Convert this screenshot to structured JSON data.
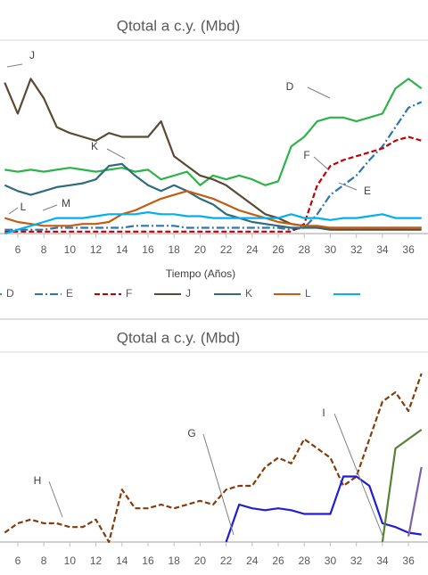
{
  "chart_data": [
    {
      "type": "line",
      "title": "Qtotal a c.y. (Mbd)",
      "x_label": "Tiempo (Años)",
      "x": [
        5,
        6,
        7,
        8,
        9,
        10,
        11,
        12,
        13,
        14,
        15,
        16,
        17,
        18,
        19,
        20,
        21,
        22,
        23,
        24,
        25,
        26,
        27,
        28,
        29,
        30,
        31,
        32,
        33,
        34,
        35,
        36,
        37
      ],
      "xlim": [
        4.5,
        37.5
      ],
      "xticks": [
        6,
        8,
        10,
        12,
        14,
        16,
        18,
        20,
        22,
        24,
        26,
        28,
        30,
        32,
        34,
        36
      ],
      "ylim": [
        0,
        100
      ],
      "series": [
        {
          "name": "D",
          "color": "#2db34a",
          "style": "solid",
          "values": [
            33,
            32,
            33,
            32,
            33,
            34,
            33,
            32,
            33,
            34,
            32,
            33,
            28,
            30,
            32,
            25,
            30,
            28,
            30,
            28,
            25,
            27,
            45,
            50,
            58,
            60,
            60,
            58,
            60,
            62,
            75,
            80,
            75
          ]
        },
        {
          "name": "E",
          "color": "#2e75b6",
          "style": "dashdot",
          "values": [
            2,
            2,
            2,
            2,
            3,
            3,
            3,
            3,
            3,
            3,
            4,
            4,
            4,
            4,
            3,
            3,
            3,
            3,
            3,
            3,
            3,
            3,
            2,
            3,
            10,
            20,
            25,
            30,
            38,
            45,
            55,
            65,
            68
          ]
        },
        {
          "name": "F",
          "color": "#c00000",
          "style": "dashed",
          "values": [
            1,
            1,
            1,
            1,
            1,
            1,
            1,
            1,
            1,
            1,
            1,
            1,
            1,
            1,
            1,
            1,
            1,
            1,
            1,
            1,
            1,
            1,
            1,
            5,
            25,
            35,
            38,
            40,
            42,
            44,
            48,
            50,
            48
          ]
        },
        {
          "name": "J",
          "color": "#594a33",
          "style": "solid",
          "values": [
            78,
            62,
            80,
            70,
            55,
            52,
            50,
            48,
            52,
            50,
            50,
            50,
            58,
            40,
            35,
            30,
            28,
            25,
            20,
            15,
            10,
            8,
            5,
            4,
            3,
            2,
            2,
            2,
            2,
            2,
            2,
            2,
            2
          ]
        },
        {
          "name": "K",
          "color": "#2e6b7d",
          "style": "solid",
          "values": [
            25,
            22,
            20,
            22,
            24,
            25,
            26,
            28,
            35,
            36,
            30,
            25,
            22,
            25,
            22,
            18,
            15,
            10,
            8,
            6,
            5,
            4,
            3,
            3,
            3,
            3,
            3,
            3,
            3,
            3,
            3,
            3,
            3
          ]
        },
        {
          "name": "L",
          "color": "#c55a11",
          "style": "solid",
          "values": [
            8,
            6,
            5,
            4,
            4,
            4,
            5,
            5,
            6,
            10,
            12,
            15,
            18,
            20,
            22,
            20,
            18,
            15,
            12,
            10,
            8,
            6,
            5,
            4,
            4,
            3,
            3,
            3,
            3,
            3,
            3,
            3,
            3
          ]
        },
        {
          "color": "#00b0f0",
          "style": "solid",
          "values": [
            0,
            2,
            4,
            6,
            8,
            8,
            8,
            9,
            10,
            10,
            10,
            11,
            10,
            10,
            9,
            9,
            8,
            8,
            8,
            8,
            8,
            8,
            10,
            8,
            8,
            7,
            8,
            8,
            9,
            10,
            8,
            8,
            8
          ]
        }
      ],
      "annotations": [
        "J",
        "D",
        "K",
        "F",
        "E",
        "L",
        "M"
      ]
    },
    {
      "type": "line",
      "title": "Qtotal a c.y. (Mbd)",
      "x": [
        5,
        6,
        7,
        8,
        9,
        10,
        11,
        12,
        13,
        14,
        15,
        16,
        17,
        18,
        19,
        20,
        21,
        22,
        23,
        24,
        25,
        26,
        27,
        28,
        29,
        30,
        31,
        32,
        33,
        34,
        35,
        36,
        37
      ],
      "xlim": [
        4.5,
        37.5
      ],
      "xticks": [
        6,
        8,
        10,
        12,
        14,
        16,
        18,
        20,
        22,
        24,
        26,
        28,
        30,
        32,
        34,
        36
      ],
      "ylim": [
        0,
        100
      ],
      "series": [
        {
          "color": "#843c0c",
          "style": "dashed",
          "values": [
            5,
            10,
            12,
            10,
            10,
            8,
            8,
            12,
            0,
            28,
            18,
            18,
            20,
            18,
            20,
            22,
            20,
            28,
            30,
            30,
            40,
            45,
            42,
            55,
            50,
            45,
            30,
            35,
            55,
            75,
            80,
            70,
            90
          ]
        },
        {
          "color": "#1f1fd1",
          "style": "solid",
          "values": [
            null,
            null,
            null,
            null,
            null,
            null,
            null,
            null,
            null,
            null,
            null,
            null,
            null,
            null,
            null,
            null,
            null,
            0,
            20,
            18,
            17,
            18,
            17,
            15,
            15,
            15,
            35,
            35,
            30,
            10,
            8,
            5,
            4
          ]
        },
        {
          "color": "#548235",
          "style": "solid",
          "values": [
            null,
            null,
            null,
            null,
            null,
            null,
            null,
            null,
            null,
            null,
            null,
            null,
            null,
            null,
            null,
            null,
            null,
            null,
            null,
            null,
            null,
            null,
            null,
            null,
            null,
            null,
            null,
            null,
            null,
            0,
            50,
            55,
            60
          ]
        },
        {
          "color": "#7f60a8",
          "style": "solid",
          "values": [
            null,
            null,
            null,
            null,
            null,
            null,
            null,
            null,
            null,
            null,
            null,
            null,
            null,
            null,
            null,
            null,
            null,
            null,
            null,
            null,
            null,
            null,
            null,
            null,
            null,
            null,
            null,
            null,
            null,
            null,
            null,
            3,
            40
          ]
        }
      ],
      "annotations": [
        "H",
        "G",
        "I"
      ]
    }
  ]
}
